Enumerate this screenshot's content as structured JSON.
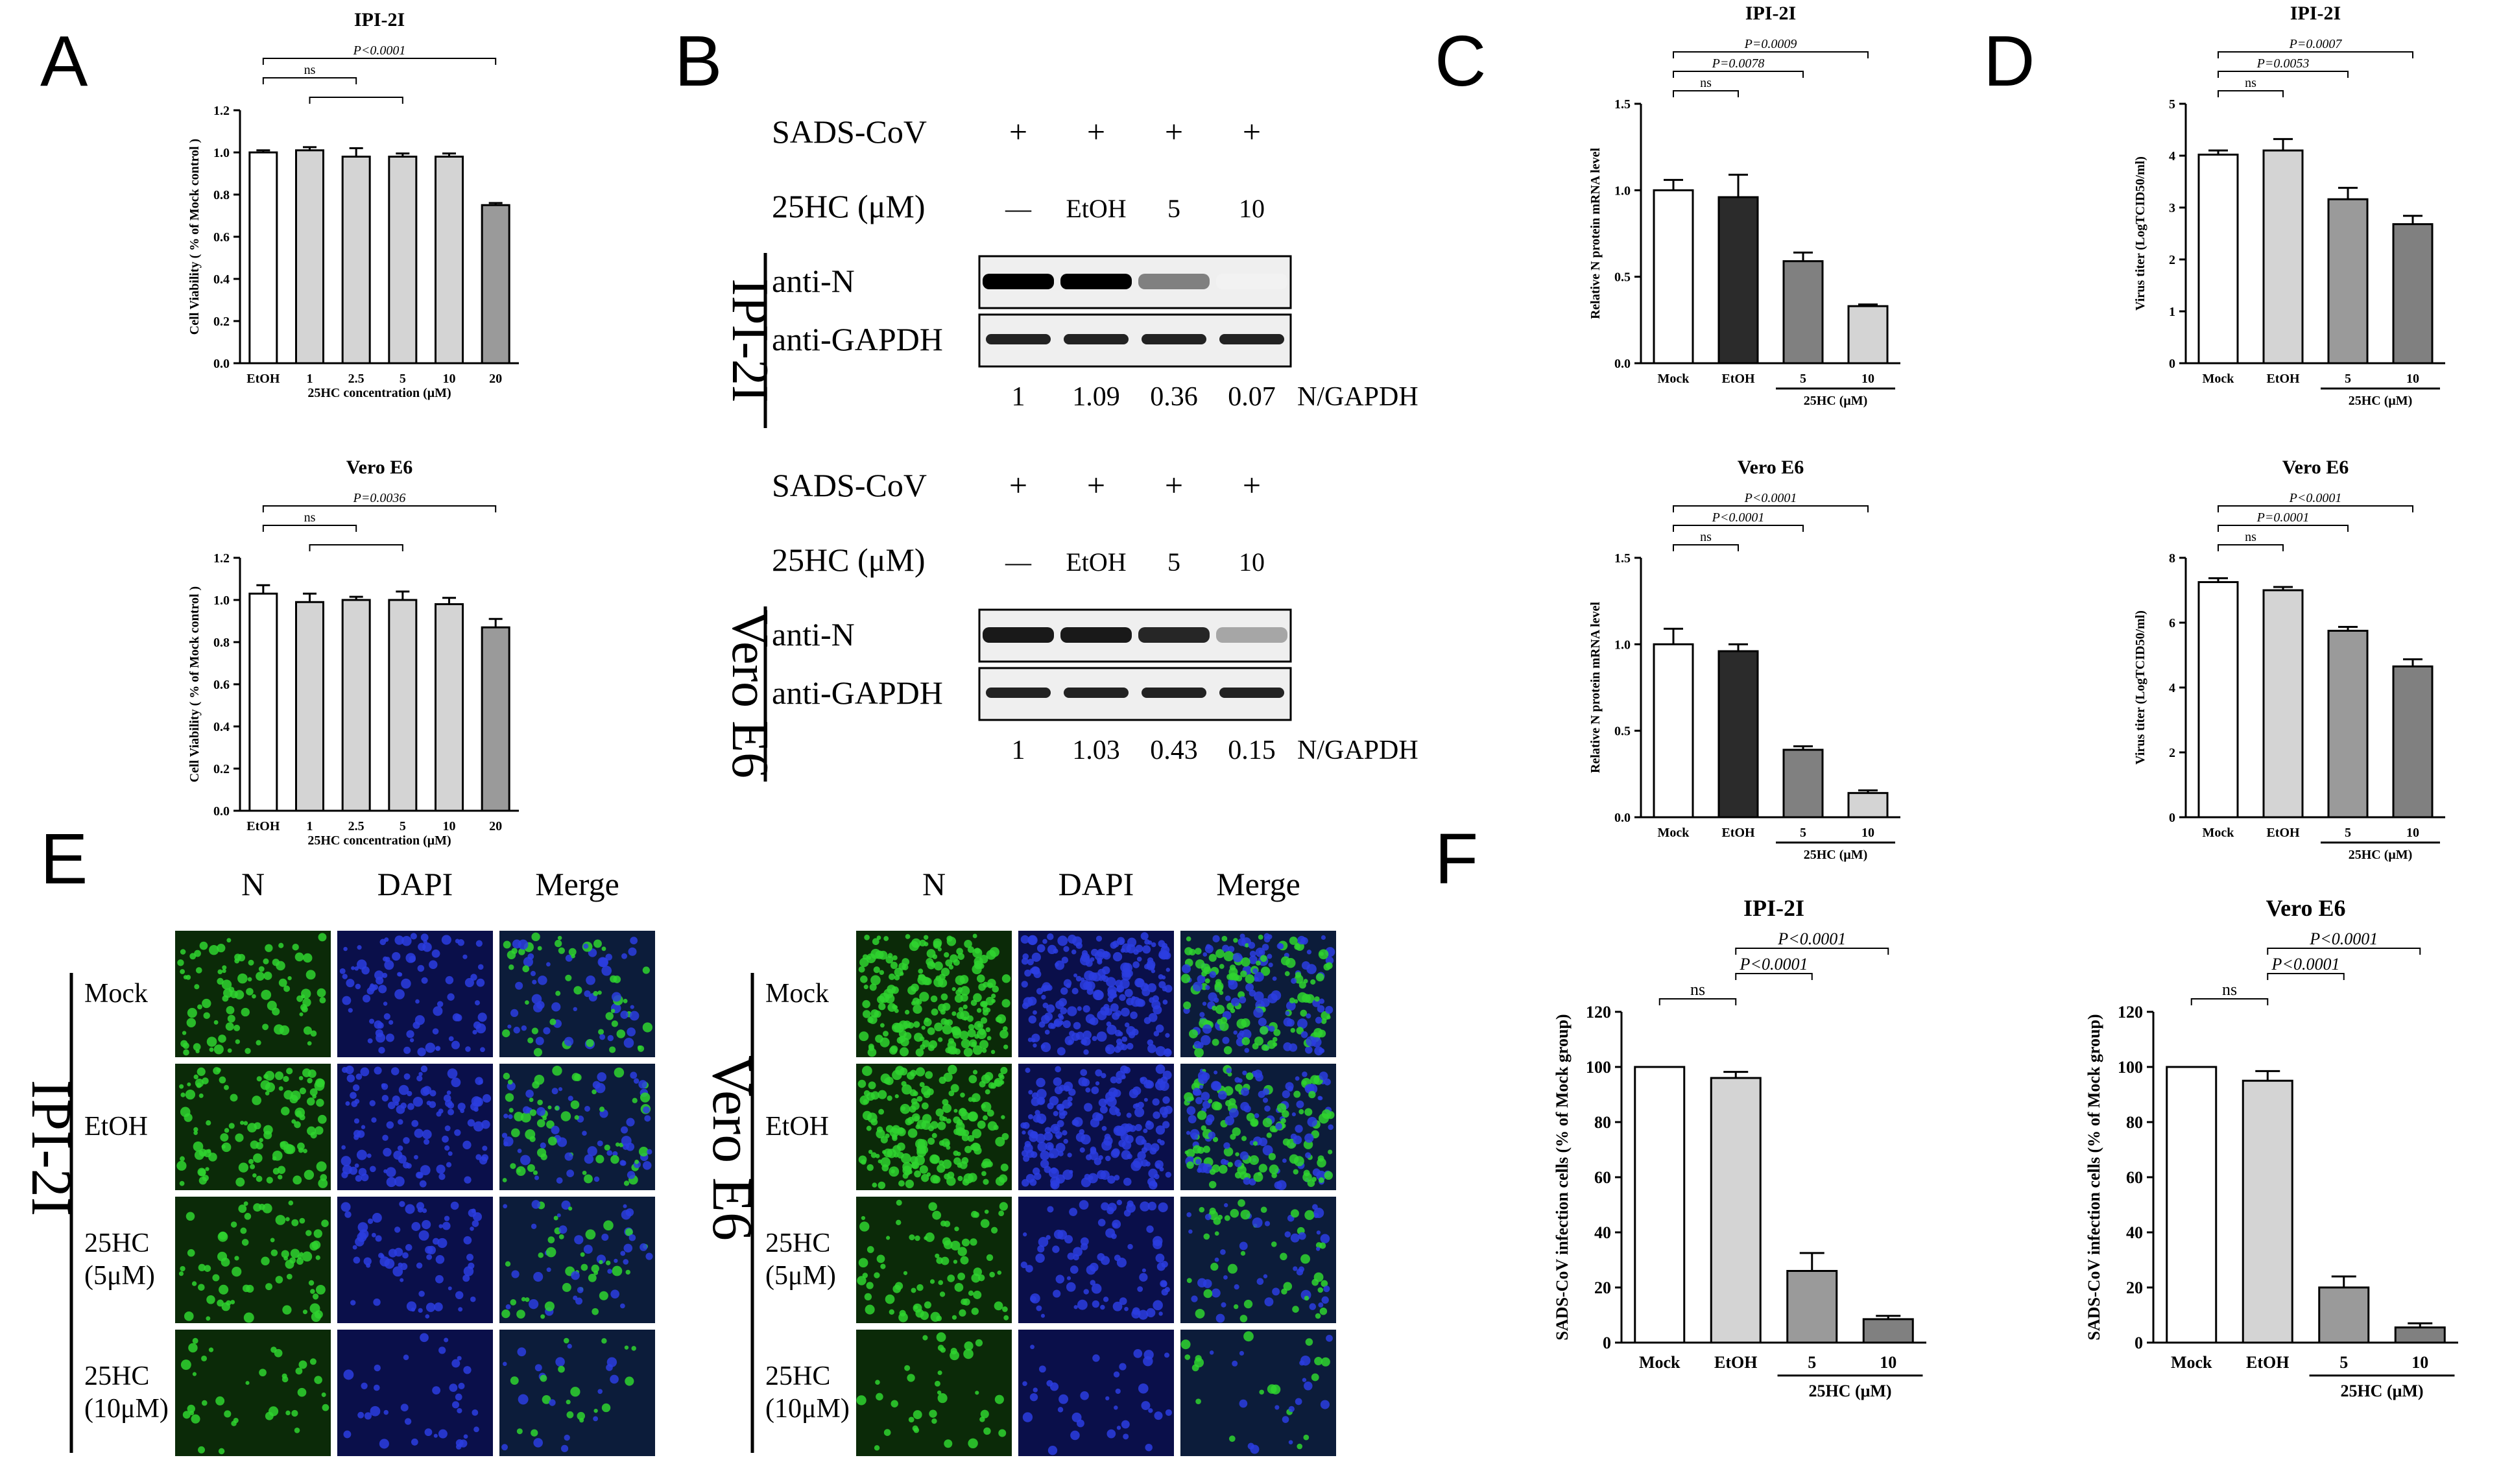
{
  "panel_labels": {
    "A": "A",
    "B": "B",
    "C": "C",
    "D": "D",
    "E": "E",
    "F": "F"
  },
  "chart_data": [
    {
      "id": "A1",
      "type": "bar",
      "title": "IPI-2I",
      "ylabel": "Cell Viability ( % of Mock control )",
      "xlabel": "25HC concentration (μM)",
      "categories": [
        "EtOH",
        "1",
        "2.5",
        "5",
        "10",
        "20"
      ],
      "values": [
        1.0,
        1.01,
        0.98,
        0.98,
        0.98,
        0.75
      ],
      "errors": [
        0.01,
        0.015,
        0.04,
        0.015,
        0.015,
        0.01
      ],
      "ylim": [
        0,
        1.2
      ],
      "yticks": [
        "0.0",
        "0.2",
        "0.4",
        "0.6",
        "0.8",
        "1.0",
        "1.2"
      ],
      "brackets": [
        {
          "from": 0,
          "to": 5,
          "label": "P<0.0001"
        },
        {
          "from": 0,
          "to": 2,
          "label": "ns"
        },
        {
          "from": 1,
          "to": 3,
          "label": ""
        }
      ]
    },
    {
      "id": "A2",
      "type": "bar",
      "title": "Vero E6",
      "ylabel": "Cell Viability ( % of Mock control )",
      "xlabel": "25HC concentration (μM)",
      "categories": [
        "EtOH",
        "1",
        "2.5",
        "5",
        "10",
        "20"
      ],
      "values": [
        1.03,
        0.99,
        1.0,
        1.0,
        0.98,
        0.87
      ],
      "errors": [
        0.04,
        0.04,
        0.015,
        0.04,
        0.03,
        0.04
      ],
      "ylim": [
        0,
        1.2
      ],
      "yticks": [
        "0.0",
        "0.2",
        "0.4",
        "0.6",
        "0.8",
        "1.0",
        "1.2"
      ],
      "brackets": [
        {
          "from": 0,
          "to": 5,
          "label": "P=0.0036"
        },
        {
          "from": 0,
          "to": 2,
          "label": "ns"
        },
        {
          "from": 1,
          "to": 3,
          "label": ""
        }
      ]
    },
    {
      "id": "C1",
      "type": "bar",
      "title": "IPI-2I",
      "ylabel": "Relative N protein mRNA level",
      "xlabel": "25HC (μM)",
      "categories": [
        "Mock",
        "EtOH",
        "5",
        "10"
      ],
      "values": [
        1.0,
        0.96,
        0.59,
        0.33
      ],
      "errors": [
        0.06,
        0.13,
        0.05,
        0.01
      ],
      "ylim": [
        0,
        1.5
      ],
      "yticks": [
        "0.0",
        "0.5",
        "1.0",
        "1.5"
      ],
      "brackets": [
        {
          "from": 0,
          "to": 3,
          "label": "P=0.0009"
        },
        {
          "from": 0,
          "to": 2,
          "label": "P=0.0078"
        },
        {
          "from": 0,
          "to": 1,
          "label": "ns"
        }
      ]
    },
    {
      "id": "C2",
      "type": "bar",
      "title": "Vero E6",
      "ylabel": "Relative N protein mRNA level",
      "xlabel": "25HC (μM)",
      "categories": [
        "Mock",
        "EtOH",
        "5",
        "10"
      ],
      "values": [
        1.0,
        0.96,
        0.39,
        0.14
      ],
      "errors": [
        0.09,
        0.04,
        0.02,
        0.015
      ],
      "ylim": [
        0,
        1.5
      ],
      "yticks": [
        "0.0",
        "0.5",
        "1.0",
        "1.5"
      ],
      "brackets": [
        {
          "from": 0,
          "to": 3,
          "label": "P<0.0001"
        },
        {
          "from": 0,
          "to": 2,
          "label": "P<0.0001"
        },
        {
          "from": 0,
          "to": 1,
          "label": "ns"
        }
      ]
    },
    {
      "id": "D1",
      "type": "bar",
      "title": "IPI-2I",
      "ylabel": "Virus titer (LogTCID50/ml)",
      "xlabel": "25HC (μM)",
      "categories": [
        "Mock",
        "EtOH",
        "5",
        "10"
      ],
      "values": [
        4.02,
        4.1,
        3.16,
        2.68
      ],
      "errors": [
        0.08,
        0.22,
        0.22,
        0.16
      ],
      "ylim": [
        0,
        5
      ],
      "yticks": [
        "0",
        "1",
        "2",
        "3",
        "4",
        "5"
      ],
      "brackets": [
        {
          "from": 0,
          "to": 3,
          "label": "P=0.0007"
        },
        {
          "from": 0,
          "to": 2,
          "label": "P=0.0053"
        },
        {
          "from": 0,
          "to": 1,
          "label": "ns"
        }
      ]
    },
    {
      "id": "D2",
      "type": "bar",
      "title": "Vero E6",
      "ylabel": "Virus titer (LogTCID50/ml)",
      "xlabel": "25HC (μM)",
      "categories": [
        "Mock",
        "EtOH",
        "5",
        "10"
      ],
      "values": [
        7.25,
        7.0,
        5.75,
        4.65
      ],
      "errors": [
        0.12,
        0.1,
        0.12,
        0.22
      ],
      "ylim": [
        0,
        8
      ],
      "yticks": [
        "0",
        "2",
        "4",
        "6",
        "8"
      ],
      "brackets": [
        {
          "from": 0,
          "to": 3,
          "label": "P<0.0001"
        },
        {
          "from": 0,
          "to": 2,
          "label": "P=0.0001"
        },
        {
          "from": 0,
          "to": 1,
          "label": "ns"
        }
      ]
    },
    {
      "id": "F1",
      "type": "bar",
      "title": "IPI-2I",
      "ylabel": "SADS-CoV infection cells (% of Mock group)",
      "xlabel": "25HC (μM)",
      "categories": [
        "Mock",
        "EtOH",
        "5",
        "10"
      ],
      "values": [
        100,
        96,
        26,
        8.5
      ],
      "errors": [
        0,
        2.2,
        6.5,
        1.2
      ],
      "ylim": [
        0,
        120
      ],
      "yticks": [
        "0",
        "20",
        "40",
        "60",
        "80",
        "100",
        "120"
      ],
      "brackets": [
        {
          "from": 1,
          "to": 3,
          "label": "P<0.0001"
        },
        {
          "from": 1,
          "to": 2,
          "label": "P<0.0001"
        },
        {
          "from": 0,
          "to": 1,
          "label": "ns"
        }
      ]
    },
    {
      "id": "F2",
      "type": "bar",
      "title": "Vero E6",
      "ylabel": "SADS-CoV infection cells (% of Mock group)",
      "xlabel": "25HC (μM)",
      "categories": [
        "Mock",
        "EtOH",
        "5",
        "10"
      ],
      "values": [
        100,
        95,
        20,
        5.5
      ],
      "errors": [
        0,
        3.5,
        4,
        1.5
      ],
      "ylim": [
        0,
        120
      ],
      "yticks": [
        "0",
        "20",
        "40",
        "60",
        "80",
        "100",
        "120"
      ],
      "brackets": [
        {
          "from": 1,
          "to": 3,
          "label": "P<0.0001"
        },
        {
          "from": 1,
          "to": 2,
          "label": "P<0.0001"
        },
        {
          "from": 0,
          "to": 1,
          "label": "ns"
        }
      ]
    }
  ],
  "blot": {
    "ipi": {
      "cell": "IPI-2I",
      "virus_label": "SADS-CoV",
      "virus_marks": [
        "+",
        "+",
        "+",
        "+"
      ],
      "treat_label": "25HC (μM)",
      "treat_values": [
        "—",
        "EtOH",
        "5",
        "10"
      ],
      "row1": "anti-N",
      "row2": "anti-GAPDH",
      "ratios": [
        "1",
        "1.09",
        "0.36",
        "0.07"
      ],
      "ratio_label": "N/GAPDH",
      "n_intensity": [
        1.0,
        1.0,
        0.5,
        0.05
      ]
    },
    "vero": {
      "cell": "Vero E6",
      "virus_label": "SADS-CoV",
      "virus_marks": [
        "+",
        "+",
        "+",
        "+"
      ],
      "treat_label": "25HC (μM)",
      "treat_values": [
        "—",
        "EtOH",
        "5",
        "10"
      ],
      "row1": "anti-N",
      "row2": "anti-GAPDH",
      "ratios": [
        "1",
        "1.03",
        "0.43",
        "0.15"
      ],
      "ratio_label": "N/GAPDH",
      "n_intensity": [
        0.9,
        0.9,
        0.85,
        0.35
      ]
    }
  },
  "micro": {
    "ipi": {
      "cell": "IPI-2I",
      "cols": [
        "N",
        "DAPI",
        "Merge"
      ],
      "rows": [
        "Mock",
        "EtOH",
        "25HC\n(5μM)",
        "25HC\n(10μM)"
      ]
    },
    "vero": {
      "cell": "Vero E6",
      "cols": [
        "N",
        "DAPI",
        "Merge"
      ],
      "rows": [
        "Mock",
        "EtOH",
        "25HC\n(5μM)",
        "25HC\n(10μM)"
      ]
    }
  },
  "colors": {
    "white_bar": "#ffffff",
    "dark_bar": "#2b2b2b",
    "mid_bar": "#808080",
    "light_bar": "#d4d4d4",
    "mid_gray": "#9a9a9a",
    "green": "#2fd42f",
    "blue": "#1a2ba8"
  }
}
